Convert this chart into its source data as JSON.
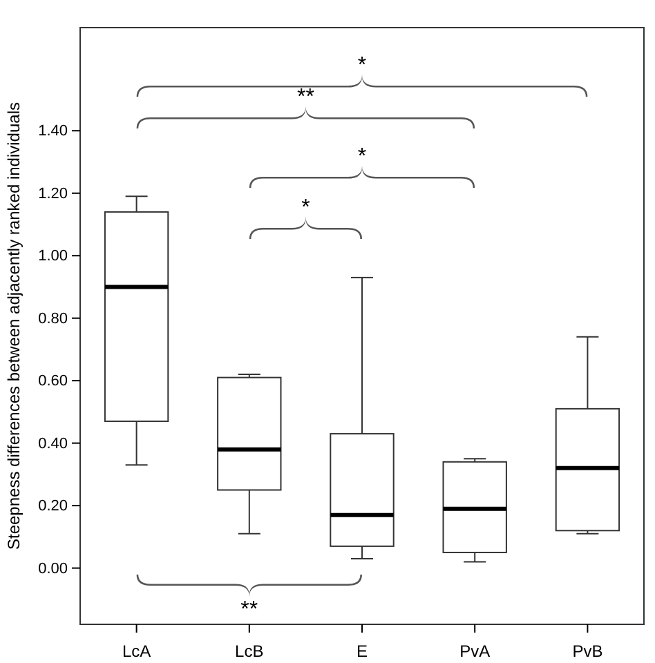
{
  "chart_data": {
    "type": "box",
    "ylabel": "Steepness differences between adjacently ranked individuals",
    "categories": [
      "LcA",
      "LcB",
      "E",
      "PvA",
      "PvB"
    ],
    "boxes": [
      {
        "low": 0.33,
        "q1": 0.47,
        "median": 0.9,
        "q3": 1.14,
        "high": 1.19
      },
      {
        "low": 0.11,
        "q1": 0.25,
        "median": 0.38,
        "q3": 0.61,
        "high": 0.62
      },
      {
        "low": 0.03,
        "q1": 0.07,
        "median": 0.17,
        "q3": 0.43,
        "high": 0.93
      },
      {
        "low": 0.02,
        "q1": 0.05,
        "median": 0.19,
        "q3": 0.34,
        "high": 0.35
      },
      {
        "low": 0.11,
        "q1": 0.12,
        "median": 0.32,
        "q3": 0.51,
        "high": 0.74
      }
    ],
    "ylim": [
      -0.18,
      1.73
    ],
    "yticks": [
      {
        "value": 0,
        "label": "0.00"
      },
      {
        "value": 0.2,
        "label": "0.20"
      },
      {
        "value": 0.4,
        "label": "0.40"
      },
      {
        "value": 0.6,
        "label": "0.60"
      },
      {
        "value": 0.8,
        "label": "0.80"
      },
      {
        "value": 1,
        "label": "1.00"
      },
      {
        "value": 1.2,
        "label": "1.20"
      },
      {
        "value": 1.4,
        "label": "1.40"
      }
    ],
    "annotations": [
      "*",
      "**",
      "*",
      "*",
      "**"
    ]
  }
}
